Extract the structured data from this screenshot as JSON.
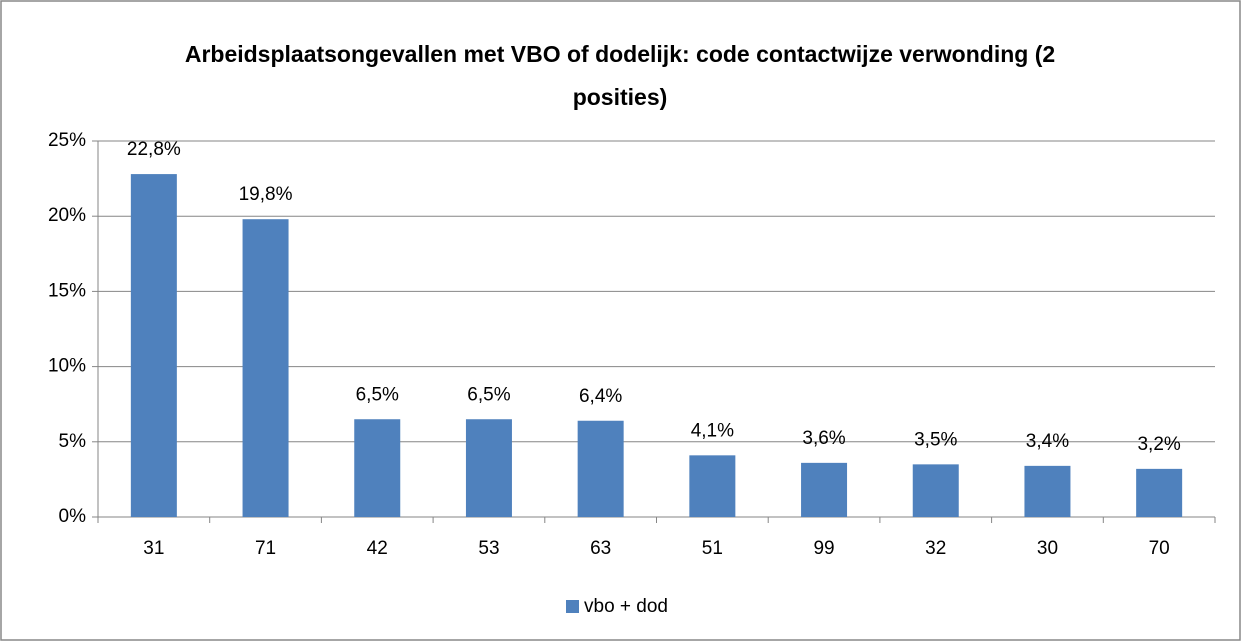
{
  "chart_data": {
    "type": "bar",
    "title": "Arbeidsplaatsongevallen met VBO of dodelijk: code contactwijze verwonding (2 posities)",
    "categories": [
      "31",
      "71",
      "42",
      "53",
      "63",
      "51",
      "99",
      "32",
      "30",
      "70"
    ],
    "series": [
      {
        "name": "vbo + dod",
        "color": "#4f81bd",
        "values": [
          22.8,
          19.8,
          6.5,
          6.5,
          6.4,
          4.1,
          3.6,
          3.5,
          3.4,
          3.2
        ],
        "value_labels": [
          "22,8%",
          "19,8%",
          "6,5%",
          "6,5%",
          "6,4%",
          "4,1%",
          "3,6%",
          "3,5%",
          "3,4%",
          "3,2%"
        ]
      }
    ],
    "ylim": [
      0,
      25
    ],
    "yticks": [
      {
        "value": 0,
        "label": "0%"
      },
      {
        "value": 5,
        "label": "5%"
      },
      {
        "value": 10,
        "label": "10%"
      },
      {
        "value": 15,
        "label": "15%"
      },
      {
        "value": 20,
        "label": "20%"
      },
      {
        "value": 25,
        "label": "25%"
      }
    ],
    "grid": true,
    "legend": "bottom"
  }
}
